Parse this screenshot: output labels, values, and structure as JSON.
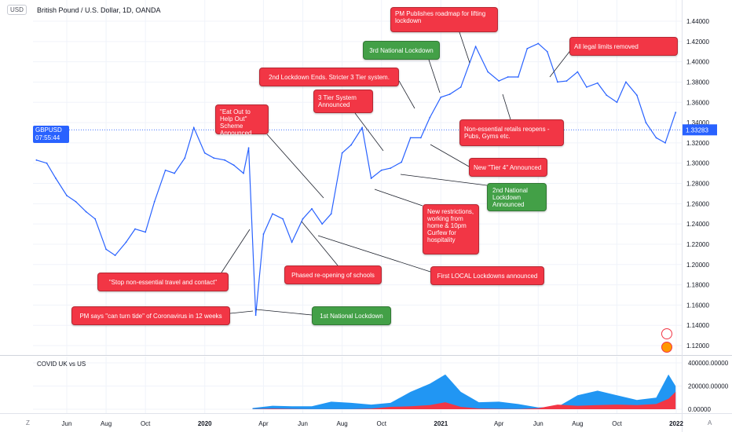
{
  "header": {
    "title": "British Pound / U.S. Dollar, 1D, OANDA",
    "currency": "USD",
    "subchart_title": "COVID UK vs US"
  },
  "price_badge": {
    "symbol": "GBPUSD",
    "price": "1.33283",
    "countdown": "07:55:44"
  },
  "corner": {
    "left": "Z",
    "right": "A"
  },
  "colors": {
    "price_line": "#2962ff",
    "badge": "#2962ff",
    "annotation_red": "#f23645",
    "annotation_green": "#43a047",
    "uk_area": "#f23645",
    "us_area": "#2196f3",
    "grid": "#f0f3fa"
  },
  "annotations": [
    {
      "id": "pm-roadmap",
      "text": "PM Publishes roadmap for lifting lockdown",
      "color": "red"
    },
    {
      "id": "third-lockdown",
      "text": "3rd National Lockdown",
      "color": "green"
    },
    {
      "id": "legal-limits",
      "text": "All legal limits removed",
      "color": "red"
    },
    {
      "id": "second-lockdown-ends",
      "text": "2nd Lockdown Ends. Stricter 3 Tier system.",
      "color": "red"
    },
    {
      "id": "three-tier",
      "text": "3 Tier System Announced",
      "color": "red"
    },
    {
      "id": "eat-out",
      "text": "\"Eat Out to Help Out\" Scheme Announced",
      "color": "red"
    },
    {
      "id": "non-essential-retail",
      "text": "Non-essential retails reopens - Pubs, Gyms etc.",
      "color": "red"
    },
    {
      "id": "tier4",
      "text": "New \"Tier 4\" Announced",
      "color": "red"
    },
    {
      "id": "second-lockdown",
      "text": "2nd National Lockdown Announced",
      "color": "green"
    },
    {
      "id": "new-restrictions",
      "text": "New restrictions, working from home & 10pm Curfew for hospitality",
      "color": "red"
    },
    {
      "id": "stop-travel",
      "text": "\"Stop non-essential travel and contact\"",
      "color": "red"
    },
    {
      "id": "schools",
      "text": "Phased re-opening of schools",
      "color": "red"
    },
    {
      "id": "local-lockdowns",
      "text": "First LOCAL Lockdowns announced",
      "color": "red"
    },
    {
      "id": "turn-tide",
      "text": "PM says \"can turn tide\" of Coronavirus in 12 weeks",
      "color": "red"
    },
    {
      "id": "first-lockdown",
      "text": "1st National Lockdown",
      "color": "green"
    }
  ],
  "chart_data": [
    {
      "type": "line",
      "title": "British Pound / U.S. Dollar, 1D, OANDA",
      "symbol": "GBPUSD",
      "last_price": 1.33283,
      "x_tick_labels": [
        "Jun",
        "Aug",
        "Oct",
        "2020",
        "Apr",
        "Jun",
        "Aug",
        "Oct",
        "2021",
        "Apr",
        "Jun",
        "Aug",
        "Oct",
        "2022"
      ],
      "y_tick_labels": [
        "1.44000",
        "1.42000",
        "1.40000",
        "1.38000",
        "1.36000",
        "1.34000",
        "1.32000",
        "1.30000",
        "1.28000",
        "1.26000",
        "1.24000",
        "1.22000",
        "1.20000",
        "1.18000",
        "1.16000",
        "1.14000",
        "1.12000"
      ],
      "ylim": [
        1.11,
        1.445
      ],
      "grid": true,
      "series": [
        {
          "name": "GBPUSD",
          "x": [
            "2019-04-15",
            "2019-05-01",
            "2019-05-15",
            "2019-06-01",
            "2019-06-15",
            "2019-07-01",
            "2019-07-15",
            "2019-08-01",
            "2019-08-15",
            "2019-09-01",
            "2019-09-15",
            "2019-10-01",
            "2019-10-15",
            "2019-11-01",
            "2019-11-15",
            "2019-12-01",
            "2019-12-15",
            "2020-01-01",
            "2020-01-15",
            "2020-02-01",
            "2020-02-15",
            "2020-03-01",
            "2020-03-09",
            "2020-03-20",
            "2020-04-01",
            "2020-04-15",
            "2020-05-01",
            "2020-05-15",
            "2020-06-01",
            "2020-06-15",
            "2020-07-01",
            "2020-07-15",
            "2020-08-01",
            "2020-08-15",
            "2020-09-01",
            "2020-09-15",
            "2020-10-01",
            "2020-10-15",
            "2020-11-01",
            "2020-11-15",
            "2020-12-01",
            "2020-12-15",
            "2021-01-01",
            "2021-01-15",
            "2021-02-01",
            "2021-02-24",
            "2021-03-15",
            "2021-04-01",
            "2021-04-15",
            "2021-05-01",
            "2021-05-15",
            "2021-06-01",
            "2021-06-15",
            "2021-07-01",
            "2021-07-15",
            "2021-08-01",
            "2021-08-15",
            "2021-09-01",
            "2021-09-15",
            "2021-10-01",
            "2021-10-15",
            "2021-11-01",
            "2021-11-15",
            "2021-12-01",
            "2021-12-15",
            "2021-12-31"
          ],
          "y": [
            1.303,
            1.3,
            1.285,
            1.268,
            1.262,
            1.252,
            1.245,
            1.215,
            1.209,
            1.222,
            1.235,
            1.232,
            1.262,
            1.293,
            1.29,
            1.305,
            1.335,
            1.31,
            1.305,
            1.303,
            1.298,
            1.29,
            1.315,
            1.15,
            1.23,
            1.25,
            1.245,
            1.222,
            1.245,
            1.255,
            1.24,
            1.25,
            1.31,
            1.318,
            1.335,
            1.285,
            1.293,
            1.295,
            1.301,
            1.325,
            1.325,
            1.345,
            1.365,
            1.368,
            1.375,
            1.415,
            1.39,
            1.381,
            1.385,
            1.385,
            1.413,
            1.418,
            1.41,
            1.38,
            1.381,
            1.39,
            1.375,
            1.379,
            1.367,
            1.36,
            1.38,
            1.367,
            1.34,
            1.325,
            1.32,
            1.35
          ]
        }
      ]
    },
    {
      "type": "area",
      "title": "COVID UK vs US",
      "y_tick_labels": [
        "400000.00000",
        "200000.00000",
        "0.00000"
      ],
      "ylim": [
        0,
        420000
      ],
      "series": [
        {
          "name": "US",
          "x": [
            "2020-03-15",
            "2020-04-15",
            "2020-05-15",
            "2020-06-15",
            "2020-07-15",
            "2020-08-15",
            "2020-09-15",
            "2020-10-15",
            "2020-11-15",
            "2020-12-15",
            "2021-01-08",
            "2021-02-01",
            "2021-03-01",
            "2021-04-01",
            "2021-05-01",
            "2021-06-01",
            "2021-07-01",
            "2021-08-01",
            "2021-09-01",
            "2021-10-01",
            "2021-11-01",
            "2021-12-01",
            "2021-12-20",
            "2021-12-31"
          ],
          "values": [
            10000,
            30000,
            25000,
            25000,
            65000,
            55000,
            40000,
            55000,
            150000,
            220000,
            300000,
            150000,
            60000,
            65000,
            45000,
            15000,
            20000,
            120000,
            160000,
            120000,
            80000,
            100000,
            300000,
            200000
          ]
        },
        {
          "name": "UK",
          "x": [
            "2020-03-15",
            "2020-04-15",
            "2020-05-15",
            "2020-06-15",
            "2020-07-15",
            "2020-08-15",
            "2020-09-15",
            "2020-10-15",
            "2020-11-15",
            "2020-12-15",
            "2021-01-08",
            "2021-02-01",
            "2021-03-01",
            "2021-04-01",
            "2021-05-01",
            "2021-06-01",
            "2021-07-01",
            "2021-08-01",
            "2021-09-01",
            "2021-10-01",
            "2021-11-01",
            "2021-12-01",
            "2021-12-20",
            "2021-12-31"
          ],
          "values": [
            1000,
            5000,
            3000,
            1000,
            1000,
            1000,
            5000,
            20000,
            25000,
            35000,
            60000,
            20000,
            6000,
            3000,
            2000,
            8000,
            40000,
            30000,
            35000,
            40000,
            35000,
            45000,
            90000,
            150000
          ]
        }
      ]
    }
  ]
}
